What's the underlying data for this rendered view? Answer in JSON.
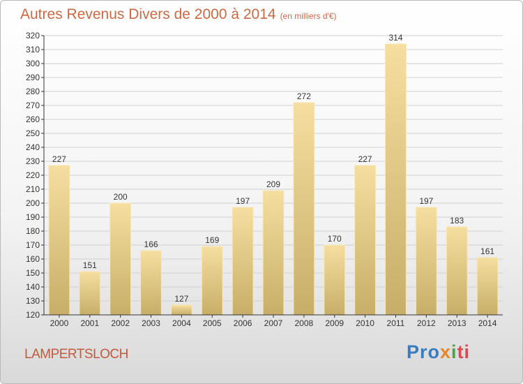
{
  "page": {
    "title": "Autres Revenus Divers de 2000 à 2014",
    "subtitle": "(en milliers d'€)",
    "location": "LAMPERTSLOCH",
    "logo": [
      "Pro",
      "x",
      "i",
      "ti"
    ]
  },
  "colors": {
    "bar_top": "#f5dea0",
    "bar_bottom": "#c7ae68",
    "bar_edge": "#f8e8b5",
    "grid": "#d0d0d0",
    "axis": "#333333",
    "title": "#c86a46"
  },
  "chart_data": {
    "type": "bar",
    "title": "Autres Revenus Divers de 2000 à 2014",
    "xlabel": "",
    "ylabel": "",
    "ylim": [
      120,
      320
    ],
    "ytick_step": 10,
    "grid": true,
    "categories": [
      "2000",
      "2001",
      "2002",
      "2003",
      "2004",
      "2005",
      "2006",
      "2007",
      "2008",
      "2009",
      "2010",
      "2011",
      "2012",
      "2013",
      "2014"
    ],
    "values": [
      227,
      151,
      200,
      166,
      127,
      169,
      197,
      209,
      272,
      170,
      227,
      314,
      197,
      183,
      161
    ]
  }
}
